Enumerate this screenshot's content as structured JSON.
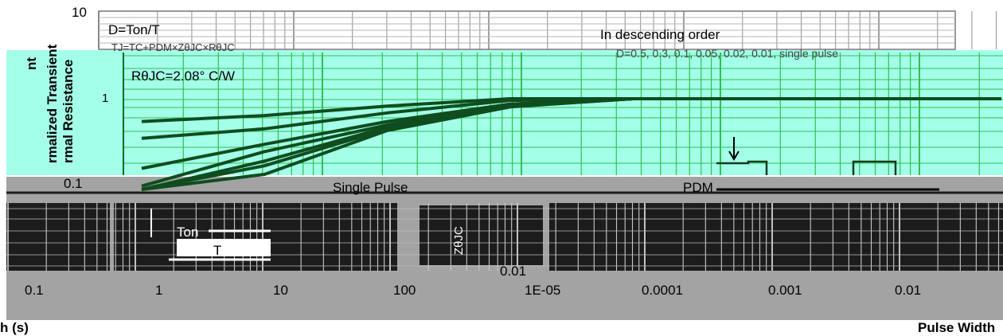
{
  "chart_data": {
    "type": "line",
    "title": "",
    "xlabel": "Pulse Width (s)",
    "ylabel": "Normalized Transient Thermal Resistance",
    "y_scale": "log",
    "x_scale": "log",
    "y_ticks": [
      "10",
      "1",
      "0.1",
      "0.01"
    ],
    "x_ticks": [
      "1E-05",
      "0.0001",
      "0.001",
      "0.01",
      "0.1",
      "1",
      "10",
      "100"
    ],
    "xlim": [
      1e-05,
      100
    ],
    "ylim": [
      0.01,
      10
    ],
    "grid": true,
    "annotations": [
      "D=Ton/T",
      "TJ=TC+PDM×ZθJC×RθJC",
      "RθJC=2.08° C/W",
      "In descending order",
      "D=0.5, 0.3, 0.1, 0.05, 0.02, 0.01, single pulse",
      "Single Pulse",
      "PDM",
      "Ton",
      "T",
      "ZθJC"
    ],
    "series": [
      {
        "name": "D=0.5",
        "x": [
          1e-05,
          0.0001,
          0.001,
          0.01,
          0.1,
          1,
          10,
          100
        ],
        "values": [
          0.5,
          0.6,
          0.8,
          1.0,
          1.0,
          1.0,
          1.0,
          1.0
        ]
      },
      {
        "name": "D=0.3",
        "x": [
          1e-05,
          0.0001,
          0.001,
          0.01,
          0.1,
          1,
          10,
          100
        ],
        "values": [
          0.3,
          0.4,
          0.65,
          0.95,
          1.0,
          1.0,
          1.0,
          1.0
        ]
      },
      {
        "name": "D=0.1",
        "x": [
          1e-05,
          0.0001,
          0.001,
          0.01,
          0.1,
          1,
          10,
          100
        ],
        "values": [
          0.12,
          0.25,
          0.5,
          0.85,
          1.0,
          1.0,
          1.0,
          1.0
        ]
      },
      {
        "name": "D=0.05",
        "x": [
          1e-05,
          0.0001,
          0.001,
          0.01,
          0.1,
          1,
          10,
          100
        ],
        "values": [
          0.07,
          0.2,
          0.45,
          0.82,
          1.0,
          1.0,
          1.0,
          1.0
        ]
      },
      {
        "name": "D=0.02",
        "x": [
          1e-05,
          0.0001,
          0.001,
          0.01,
          0.1,
          1,
          10,
          100
        ],
        "values": [
          0.04,
          0.15,
          0.42,
          0.8,
          1.0,
          1.0,
          1.0,
          1.0
        ]
      },
      {
        "name": "D=0.01",
        "x": [
          1e-05,
          0.0001,
          0.001,
          0.01,
          0.1,
          1,
          10,
          100
        ],
        "values": [
          0.03,
          0.13,
          0.4,
          0.79,
          1.0,
          1.0,
          1.0,
          1.0
        ]
      },
      {
        "name": "single pulse",
        "x": [
          1e-05,
          0.0001,
          0.001,
          0.01,
          0.1,
          1,
          10,
          100
        ],
        "values": [
          0.02,
          0.1,
          0.38,
          0.78,
          1.0,
          1.0,
          1.0,
          1.0
        ]
      }
    ]
  },
  "text": {
    "y10": "10",
    "y1": "1",
    "y01": "0.1",
    "y001": "0.01",
    "d_eq": "D=Ton/T",
    "tj_eq": "TJ=TC+PDM×ZθJC×RθJC",
    "rth": "RθJC=2.08° C/W",
    "desc": "In descending order",
    "dlist": "D=0.5, 0.3, 0.1, 0.05, 0.02, 0.01, single pulse",
    "single": "Single Pulse",
    "pdm": "PDM",
    "ton": "Ton",
    "t": "T",
    "zjc": "ZθJC",
    "xt1": "0.1",
    "xt2": "1",
    "xt3": "10",
    "xt4": "100",
    "xt5": "1E-05",
    "xt6": "0.0001",
    "xt7": "0.001",
    "xt8": "0.01",
    "xlabel_left": "h (s)",
    "xlabel_right": "Pulse Width",
    "ylabel1": "rmalized Transient",
    "ylabel2": "rmal Resistance",
    "ylabel_top": "nt"
  }
}
